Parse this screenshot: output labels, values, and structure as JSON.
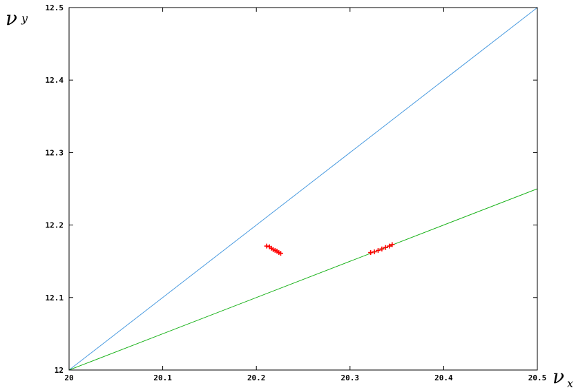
{
  "chart_data": {
    "type": "scatter",
    "title": "",
    "xlabel": {
      "symbol": "ν",
      "subscript": "x"
    },
    "ylabel": {
      "symbol": "ν",
      "subscript": "y"
    },
    "xlim": [
      20,
      20.5
    ],
    "ylim": [
      12,
      12.5
    ],
    "x_ticks": [
      20,
      20.1,
      20.2,
      20.3,
      20.4,
      20.5
    ],
    "x_tick_labels": [
      "20",
      "20.1",
      "20.2",
      "20.3",
      "20.4",
      "20.5"
    ],
    "y_ticks": [
      12,
      12.1,
      12.2,
      12.3,
      12.4,
      12.5
    ],
    "y_tick_labels": [
      "12",
      "12.1",
      "12.2",
      "12.3",
      "12.4",
      "12.5"
    ],
    "grid": false,
    "lines": [
      {
        "color": "#4a9be0",
        "points": [
          [
            20,
            12
          ],
          [
            20.5,
            12.5
          ]
        ]
      },
      {
        "color": "#19b219",
        "points": [
          [
            20,
            12
          ],
          [
            20.5,
            12.25
          ]
        ]
      }
    ],
    "point_clusters": [
      {
        "color": "#ff0000",
        "marker": "+",
        "points": [
          [
            20.211,
            12.171
          ],
          [
            20.214,
            12.17
          ],
          [
            20.216,
            12.168
          ],
          [
            20.218,
            12.166
          ],
          [
            20.22,
            12.165
          ],
          [
            20.222,
            12.164
          ],
          [
            20.224,
            12.162
          ],
          [
            20.226,
            12.161
          ]
        ]
      },
      {
        "color": "#ff0000",
        "marker": "+",
        "points": [
          [
            20.322,
            12.162
          ],
          [
            20.326,
            12.163
          ],
          [
            20.33,
            12.165
          ],
          [
            20.334,
            12.167
          ],
          [
            20.338,
            12.169
          ],
          [
            20.342,
            12.171
          ],
          [
            20.345,
            12.173
          ]
        ]
      }
    ]
  }
}
